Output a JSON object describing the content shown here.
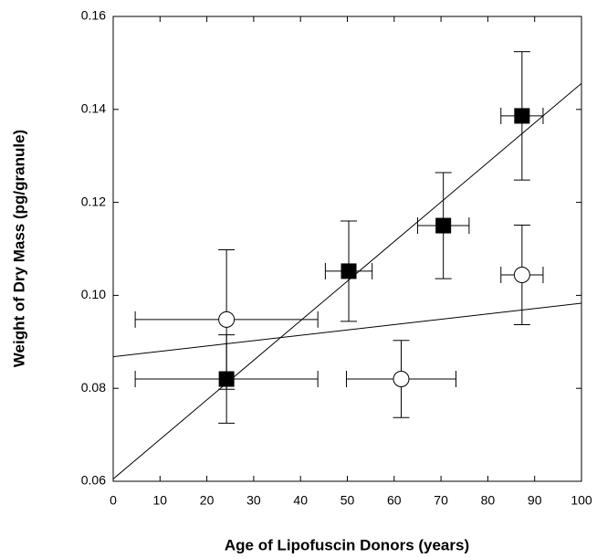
{
  "chart_data": {
    "type": "scatter",
    "x_label": "Age of Lipofuscin Donors (years)",
    "y_label": "Weight of Dry Mass (pg/granule)",
    "xlim": [
      0,
      100
    ],
    "xticks": [
      0,
      10,
      20,
      30,
      40,
      50,
      60,
      70,
      80,
      90,
      100
    ],
    "ylim": [
      0.06,
      0.16
    ],
    "yticks": [
      0.06,
      0.08,
      {
        "value": 0.1,
        "label": "0.10"
      },
      0.12,
      0.14,
      0.16
    ],
    "series": [
      {
        "marker": "square",
        "color": "#000000",
        "x": [
          24.2,
          50.3,
          70.5,
          87.3
        ],
        "values": [
          0.082,
          0.1052,
          0.115,
          0.1386
        ],
        "x_errors": [
          19.5,
          5,
          5.5,
          4.5
        ],
        "y_errors": [
          0.0095,
          0.0108,
          0.0114,
          0.0138
        ]
      },
      {
        "marker": "circle",
        "color": "#ffffff",
        "x": [
          24.2,
          61.5,
          87.3
        ],
        "values": [
          0.0948,
          0.082,
          0.1044
        ],
        "x_errors": [
          19.5,
          11.7,
          4.5
        ],
        "y_errors": [
          0.015,
          0.0083,
          0.0107
        ]
      }
    ],
    "lines": [
      {
        "color": "#000000",
        "x": [
          0,
          100
        ],
        "values": [
          0.0605,
          0.1456
        ]
      },
      {
        "color": "#000000",
        "x": [
          0,
          100
        ],
        "values": [
          0.0868,
          0.0983
        ]
      }
    ]
  }
}
